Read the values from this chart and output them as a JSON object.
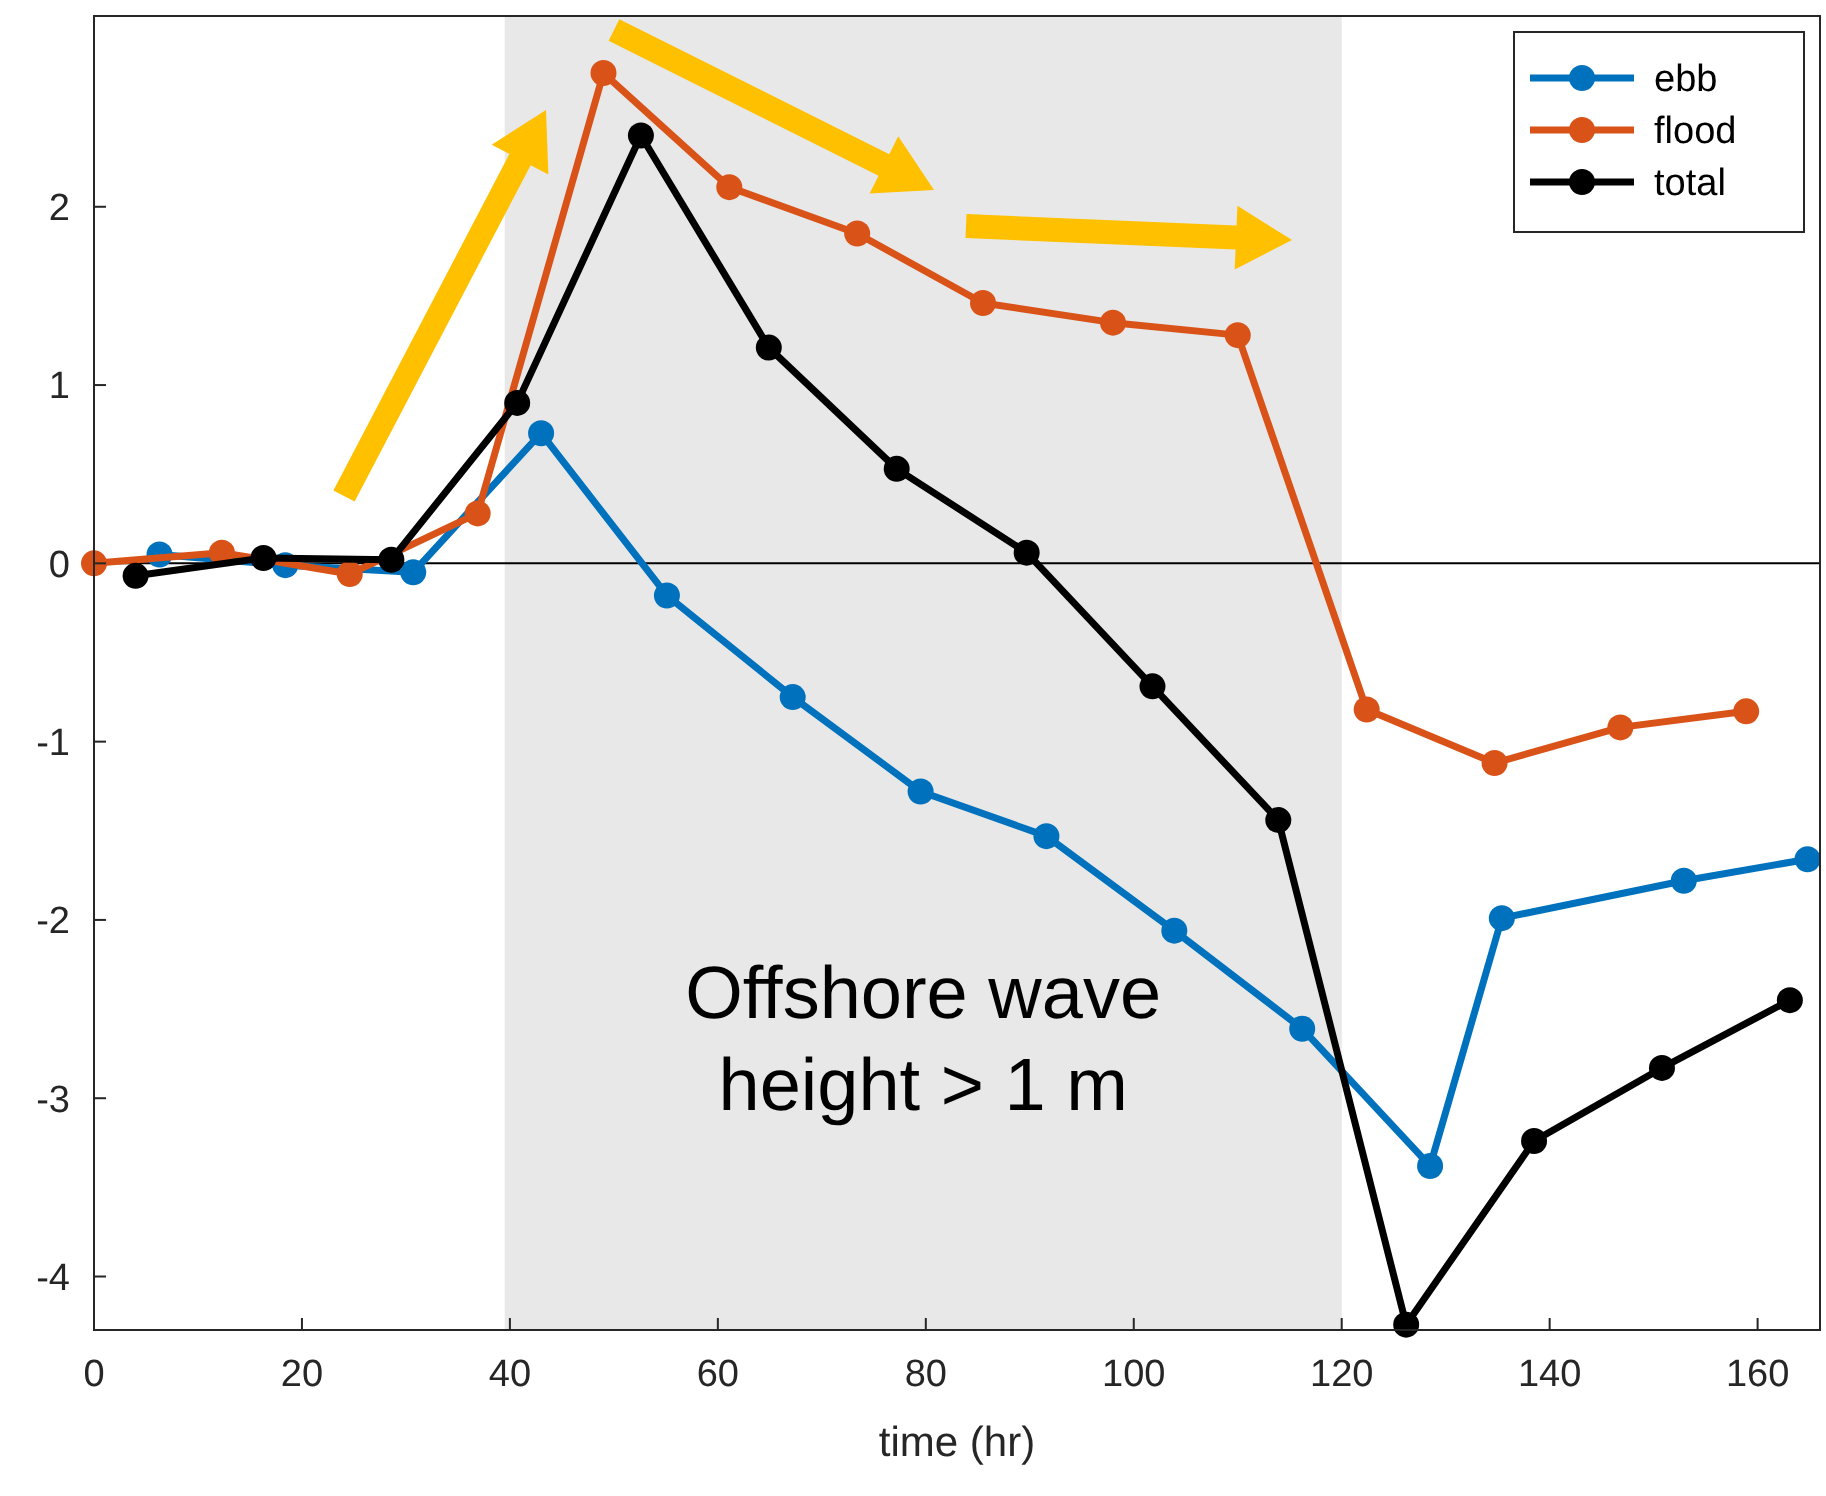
{
  "chart_data": {
    "type": "line",
    "xlabel": "time (hr)",
    "xlim": [
      0,
      166
    ],
    "xticks": [
      0,
      20,
      40,
      60,
      80,
      100,
      120,
      140,
      160
    ],
    "ylim": [
      -4.3,
      3.07
    ],
    "yticks": [
      -4,
      -3,
      -2,
      -1,
      0,
      1,
      2
    ],
    "grid": false,
    "legend": "top right",
    "marker": "circle",
    "line_style": "solid",
    "ref_lines": [
      {
        "axis": "y",
        "value": 0,
        "color": "#000000"
      }
    ],
    "bands": [
      {
        "axis": "x",
        "from": 39.5,
        "to": 120,
        "label": "Offshore wave height > 1 m",
        "color": "#e8e8e8"
      }
    ],
    "series": [
      {
        "name": "ebb",
        "color": "#0072bd",
        "x": [
          6.3,
          18.4,
          30.7,
          43,
          55.1,
          67.2,
          79.5,
          91.6,
          103.9,
          116.2,
          128.5,
          135.4,
          152.9,
          164.8
        ],
        "values": [
          0.05,
          -0.01,
          -0.05,
          0.73,
          -0.18,
          -0.75,
          -1.28,
          -1.53,
          -2.06,
          -2.61,
          -3.38,
          -1.99,
          -1.78,
          -1.66
        ]
      },
      {
        "name": "flood",
        "color": "#d95319",
        "x": [
          0,
          12.3,
          24.6,
          36.9,
          49,
          61.1,
          73.4,
          85.5,
          98,
          110,
          122.4,
          134.7,
          146.8,
          158.9
        ],
        "values": [
          0,
          0.06,
          -0.06,
          0.28,
          2.75,
          2.11,
          1.85,
          1.46,
          1.35,
          1.28,
          -0.82,
          -1.12,
          -0.92,
          -0.83
        ]
      },
      {
        "name": "total",
        "color": "#000000",
        "x": [
          4,
          16.3,
          28.6,
          40.7,
          52.6,
          64.9,
          77.2,
          89.7,
          101.8,
          113.9,
          126.2,
          138.5,
          150.8,
          163.1
        ],
        "values": [
          -0.07,
          0.03,
          0.02,
          0.9,
          2.4,
          1.21,
          0.53,
          0.06,
          -0.69,
          -1.44,
          -4.27,
          -3.24,
          -2.83,
          -2.45
        ]
      }
    ]
  }
}
